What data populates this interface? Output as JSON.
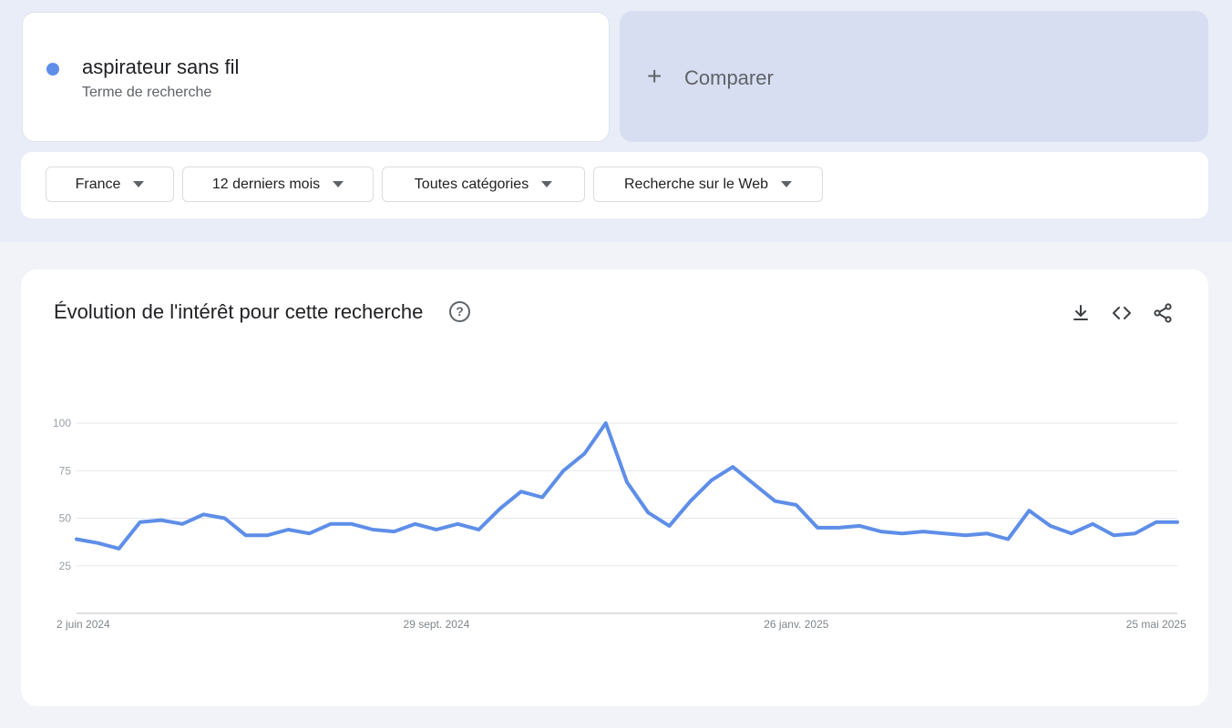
{
  "search_term": {
    "title": "aspirateur sans fil",
    "subtitle": "Terme de recherche",
    "color": "#5e8ee8"
  },
  "compare": {
    "label": "Comparer",
    "icon": "plus-icon"
  },
  "filters": [
    {
      "label": "France",
      "icon": "caret-down-icon"
    },
    {
      "label": "12 derniers mois",
      "icon": "caret-down-icon"
    },
    {
      "label": "Toutes catégories",
      "icon": "caret-down-icon"
    },
    {
      "label": "Recherche sur le Web",
      "icon": "caret-down-icon"
    }
  ],
  "chart_section": {
    "title": "Évolution de l'intérêt pour cette recherche",
    "help_icon": "help-circle-icon",
    "help_glyph": "?",
    "tools": [
      "download-icon",
      "embed-code-icon",
      "share-icon"
    ]
  },
  "chart_data": {
    "type": "line",
    "title": "",
    "xlabel": "",
    "ylabel": "",
    "ylim": [
      0,
      100
    ],
    "y_ticks": [
      25,
      50,
      75,
      100
    ],
    "grid": true,
    "x_tick_labels": [
      "2 juin 2024",
      "29 sept. 2024",
      "26 janv. 2025",
      "25 mai 2025"
    ],
    "x_tick_indices": [
      0,
      17,
      34,
      51
    ],
    "line_color": "#5e8ee8",
    "series": [
      {
        "values": [
          39,
          37,
          34,
          48,
          49,
          47,
          52,
          50,
          41,
          41,
          44,
          42,
          47,
          47,
          44,
          43,
          47,
          44,
          47,
          44,
          55,
          64,
          61,
          75,
          84,
          100,
          69,
          53,
          46,
          59,
          70,
          77,
          68,
          59,
          57,
          45,
          45,
          46,
          43,
          42,
          43,
          42,
          41,
          42,
          39,
          54,
          46,
          42,
          47,
          41,
          42,
          48,
          48
        ]
      }
    ]
  }
}
